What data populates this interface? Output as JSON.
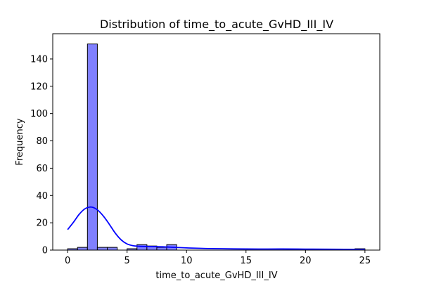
{
  "chart_data": {
    "type": "bar",
    "title": "Distribution of time_to_acute_GvHD_III_IV",
    "xlabel": "time_to_acute_GvHD_III_IV",
    "ylabel": "Frequency",
    "xlim": [
      -1.25,
      26.25
    ],
    "ylim": [
      0,
      158.5
    ],
    "xticks": [
      0,
      5,
      10,
      15,
      20,
      25
    ],
    "yticks": [
      0,
      20,
      40,
      60,
      80,
      100,
      120,
      140
    ],
    "grid": false,
    "bins": {
      "edges": [
        0,
        0.8333,
        1.6667,
        2.5,
        3.3333,
        4.1667,
        5.0,
        5.8333,
        6.6667,
        7.5,
        8.3333,
        9.1667,
        10.0,
        10.8333,
        11.6667,
        12.5,
        13.3333,
        14.1667,
        15.0,
        15.8333,
        16.6667,
        17.5,
        18.3333,
        19.1667,
        20.0,
        20.8333,
        21.6667,
        22.5,
        23.3333,
        24.1667,
        25.0
      ],
      "counts": [
        1,
        2,
        151,
        2,
        2,
        0,
        1,
        4,
        3,
        2,
        4,
        0,
        0,
        0,
        0,
        0,
        0,
        0,
        0,
        0,
        0,
        0,
        0,
        0,
        0,
        0,
        0,
        0,
        0,
        1
      ]
    },
    "kde": {
      "x": [
        0,
        0.5,
        1,
        1.5,
        2,
        2.5,
        3,
        3.5,
        4,
        4.5,
        5,
        5.5,
        6,
        7,
        8,
        9,
        10,
        12,
        15,
        18,
        20,
        22,
        25
      ],
      "y": [
        15,
        20.5,
        26.5,
        30.5,
        31.5,
        29.5,
        25,
        19,
        12.5,
        7.5,
        4.5,
        3.2,
        2.8,
        2.6,
        2.4,
        2.0,
        1.6,
        1.1,
        0.8,
        0.8,
        0.7,
        0.6,
        0.5
      ]
    },
    "colors": {
      "bar_fill": "#8080ff",
      "bar_edge": "#000000",
      "kde_line": "#0000ff"
    }
  }
}
